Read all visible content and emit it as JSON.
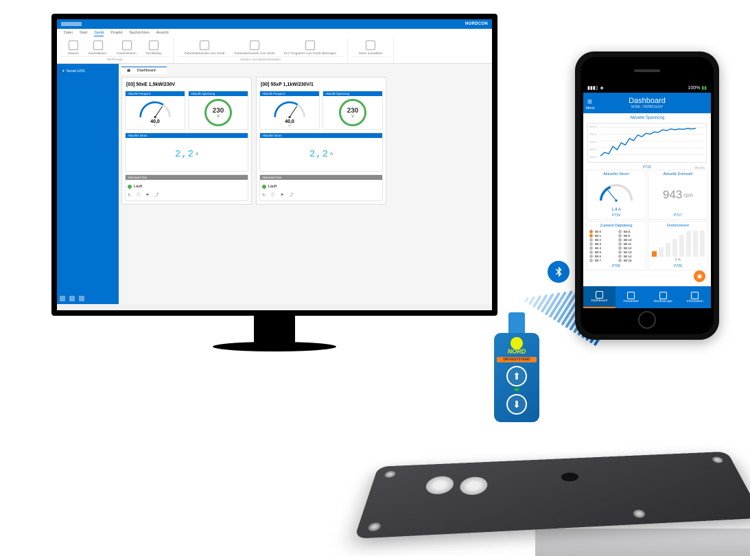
{
  "colors": {
    "primary": "#0071ce",
    "primary_dark": "#005a9e",
    "accent": "#f58220",
    "success": "#4caf50",
    "segment": "#23b5e8",
    "nord_yellow": "#e7f105"
  },
  "desktop": {
    "app_brand": "NORDCON",
    "ribbon_tabs": [
      "Datei",
      "Start",
      "Gerät",
      "Projekt",
      "Nachrichten",
      "Ansicht"
    ],
    "ribbon_active_tab": "Gerät",
    "ribbon_tools_sec1": [
      "Steuern",
      "Zentralsteuer.",
      "Parametrieren",
      "Oszilloskop"
    ],
    "ribbon_tools_sec2": [
      "Parametertransfer vom Gerät",
      "Parametertransfer zum Gerät",
      "PLC Programm zum Gerät übertragen"
    ],
    "ribbon_tools_sec3": [
      "Motor auswählen"
    ],
    "ribbon_section_labels": [
      "Werkzeuge",
      "Sichern und Wiederherstellen",
      ""
    ],
    "sidebar_item": "Serial USS",
    "dashboard_tab": "Dashboard",
    "devices": [
      {
        "title": "[03] 50xE 1,5kW/230V",
        "freq_label": "Aktuelle Frequenz",
        "freq_value": "40,0",
        "freq_unit": "Hz",
        "volt_label": "Aktuelle Spannung",
        "volt_value": "230",
        "volt_unit": "V",
        "current_label": "Aktueller Strom",
        "current_value": "2,2",
        "current_unit": "A",
        "status_label": "Statuswort Bus",
        "status_text": "Läuft",
        "status_color": "#4caf50",
        "status_icons": "↻ ⓘ ⚑ ⤴"
      },
      {
        "title": "[00] 55xP 1,1kW/230V/1",
        "freq_label": "Aktuelle Frequenz",
        "freq_value": "40,0",
        "freq_unit": "Hz",
        "volt_label": "Aktuelle Spannung",
        "volt_value": "230",
        "volt_unit": "V",
        "current_label": "Aktueller Strom",
        "current_value": "2,2",
        "current_unit": "A",
        "status_label": "Statuswort Bus",
        "status_text": "Läuft",
        "status_color": "#4caf50",
        "status_icons": "↻ ⓘ ⚑ ⤴"
      }
    ]
  },
  "phone": {
    "battery": "100%",
    "header_title": "Dashboard",
    "header_sub": "50xE 750W/115V",
    "menu_label": "Menü",
    "chart": {
      "title": "Aktuelle Spannung",
      "param": "P722",
      "right_caption": "90s/Div.",
      "y_ticks": [
        "300 V",
        "250 V",
        "200 V",
        "150 V",
        "100 V"
      ],
      "line_color": "#0071ce",
      "points": [
        0,
        8,
        5,
        22,
        14,
        30,
        25,
        40,
        35,
        48,
        44,
        52,
        50,
        55,
        54,
        60,
        58,
        62,
        60,
        62,
        61,
        63,
        62,
        63
      ]
    },
    "tiles": {
      "strom": {
        "title": "Aktueller Strom",
        "value": "1,4 A",
        "param": "P719"
      },
      "drehzahl": {
        "title": "Aktuelle Drehzahl",
        "value": "943",
        "unit": "rpm",
        "param": "P717"
      },
      "digital": {
        "title": "Zustand Digitaleing",
        "param": "P708",
        "bits": [
          {
            "l": "Bit 0",
            "c": "#f58220"
          },
          {
            "l": "Bit 8",
            "c": "#bbb"
          },
          {
            "l": "Bit 1",
            "c": "#f58220"
          },
          {
            "l": "Bit 9",
            "c": "#bbb"
          },
          {
            "l": "Bit 2",
            "c": "#bbb"
          },
          {
            "l": "Bit 10",
            "c": "#bbb"
          },
          {
            "l": "Bit 3",
            "c": "#bbb"
          },
          {
            "l": "Bit 11",
            "c": "#bbb"
          },
          {
            "l": "Bit 4",
            "c": "#bbb"
          },
          {
            "l": "Bit 12",
            "c": "#bbb"
          },
          {
            "l": "Bit 5",
            "c": "#bbb"
          },
          {
            "l": "Bit 13",
            "c": "#bbb"
          },
          {
            "l": "Bit 6",
            "c": "#bbb"
          },
          {
            "l": "Bit 14",
            "c": "#bbb"
          },
          {
            "l": "Bit 7",
            "c": "#bbb"
          },
          {
            "l": "Bit 15",
            "c": "#bbb"
          }
        ]
      },
      "drehmoment": {
        "title": "Drehmoment",
        "param": "P729",
        "value_label": "4 %",
        "bars": [
          8,
          14,
          20,
          26,
          32,
          38,
          38,
          38
        ],
        "active_index": 0
      }
    },
    "tabs": [
      "Dashboard",
      "Parameter",
      "Oscilloscope",
      "Information"
    ],
    "active_tab": 0
  },
  "stick": {
    "brand": "NORD",
    "subbrand": "DRIVESYSTEMS",
    "btn_up": "⬆",
    "btn_down": "⬇"
  },
  "beam": {
    "bars": 18,
    "color_start": "#cfe8f7",
    "color_end": "#0071ce"
  }
}
